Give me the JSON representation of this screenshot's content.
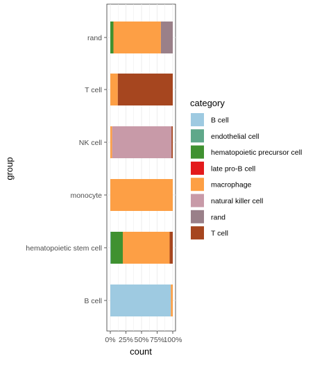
{
  "chart_data": {
    "type": "bar",
    "orientation": "horizontal",
    "stacked": "percent",
    "xlabel": "count",
    "ylabel": "group",
    "xlim": [
      0,
      1
    ],
    "x_ticks": [
      "0%",
      "25%",
      "50%",
      "75%",
      "100%"
    ],
    "grid": true,
    "legend_title": "category",
    "legend_position": "right",
    "categories": [
      "rand",
      "T cell",
      "NK cell",
      "monocyte",
      "hematopoietic stem cell",
      "B cell"
    ],
    "series": [
      {
        "name": "B cell",
        "color": "#9ecae1",
        "values": [
          0,
          0,
          0,
          0,
          0,
          0.97
        ]
      },
      {
        "name": "endothelial cell",
        "color": "#5fa88a",
        "values": [
          0,
          0,
          0,
          0,
          0.01,
          0
        ]
      },
      {
        "name": "hematopoietic precursor cell",
        "color": "#3f9130",
        "values": [
          0.05,
          0,
          0,
          0,
          0.19,
          0
        ]
      },
      {
        "name": "late pro-B cell",
        "color": "#e31a1c",
        "values": [
          0,
          0,
          0,
          0,
          0,
          0
        ]
      },
      {
        "name": "macrophage",
        "color": "#fd9f45",
        "values": [
          0.76,
          0.12,
          0.03,
          1.0,
          0.75,
          0.03
        ]
      },
      {
        "name": "natural killer cell",
        "color": "#c89aa8",
        "values": [
          0,
          0,
          0.95,
          0,
          0,
          0
        ]
      },
      {
        "name": "rand",
        "color": "#9a8089",
        "values": [
          0.19,
          0,
          0,
          0,
          0,
          0
        ]
      },
      {
        "name": "T cell",
        "color": "#a6461f",
        "values": [
          0,
          0.88,
          0.02,
          0,
          0.05,
          0
        ]
      }
    ]
  }
}
